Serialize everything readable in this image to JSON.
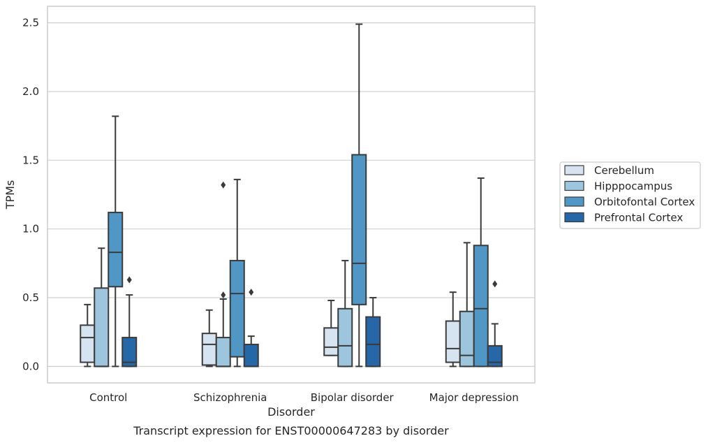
{
  "caption": "Transcript expression for ENST00000647283 by disorder",
  "chart_data": {
    "type": "boxplot",
    "xlabel": "Disorder",
    "ylabel": "TPMs",
    "ylim": [
      -0.12,
      2.62
    ],
    "yticks": [
      0.0,
      0.5,
      1.0,
      1.5,
      2.0,
      2.5
    ],
    "ytick_labels": [
      "0.0",
      "0.5",
      "1.0",
      "1.5",
      "2.0",
      "2.5"
    ],
    "grid": "horizontal",
    "legend_position": "right",
    "categories": [
      "Control",
      "Schizophrenia",
      "Bipolar disorder",
      "Major depression"
    ],
    "series": [
      {
        "name": "Cerebellum",
        "color": "#d6e4f2",
        "boxes": [
          {
            "whislo": 0.0,
            "q1": 0.03,
            "med": 0.21,
            "q3": 0.3,
            "whishi": 0.45,
            "fliers": []
          },
          {
            "whislo": 0.0,
            "q1": 0.01,
            "med": 0.16,
            "q3": 0.24,
            "whishi": 0.41,
            "fliers": []
          },
          {
            "whislo": 0.08,
            "q1": 0.08,
            "med": 0.14,
            "q3": 0.28,
            "whishi": 0.48,
            "fliers": []
          },
          {
            "whislo": 0.0,
            "q1": 0.03,
            "med": 0.13,
            "q3": 0.33,
            "whishi": 0.54,
            "fliers": []
          }
        ]
      },
      {
        "name": "Hipppocampus",
        "color": "#9dc6de",
        "boxes": [
          {
            "whislo": 0.0,
            "q1": 0.0,
            "med": 0.0,
            "q3": 0.57,
            "whishi": 0.86,
            "fliers": []
          },
          {
            "whislo": 0.0,
            "q1": 0.0,
            "med": 0.0,
            "q3": 0.21,
            "whishi": 0.49,
            "fliers": [
              0.52,
              1.32
            ]
          },
          {
            "whislo": 0.0,
            "q1": 0.0,
            "med": 0.15,
            "q3": 0.42,
            "whishi": 0.77,
            "fliers": []
          },
          {
            "whislo": 0.0,
            "q1": 0.0,
            "med": 0.08,
            "q3": 0.4,
            "whishi": 0.9,
            "fliers": []
          }
        ]
      },
      {
        "name": "Orbitofontal Cortex",
        "color": "#5097c6",
        "boxes": [
          {
            "whislo": 0.0,
            "q1": 0.58,
            "med": 0.83,
            "q3": 1.12,
            "whishi": 1.82,
            "fliers": []
          },
          {
            "whislo": 0.0,
            "q1": 0.07,
            "med": 0.53,
            "q3": 0.77,
            "whishi": 1.36,
            "fliers": []
          },
          {
            "whislo": 0.0,
            "q1": 0.45,
            "med": 0.75,
            "q3": 1.54,
            "whishi": 2.49,
            "fliers": []
          },
          {
            "whislo": 0.0,
            "q1": 0.0,
            "med": 0.42,
            "q3": 0.88,
            "whishi": 1.37,
            "fliers": []
          }
        ]
      },
      {
        "name": "Prefrontal Cortex",
        "color": "#2667a7",
        "boxes": [
          {
            "whislo": 0.0,
            "q1": 0.0,
            "med": 0.03,
            "q3": 0.21,
            "whishi": 0.52,
            "fliers": [
              0.63
            ]
          },
          {
            "whislo": 0.0,
            "q1": 0.0,
            "med": 0.0,
            "q3": 0.16,
            "whishi": 0.22,
            "fliers": [
              0.54
            ]
          },
          {
            "whislo": 0.0,
            "q1": 0.0,
            "med": 0.16,
            "q3": 0.36,
            "whishi": 0.5,
            "fliers": []
          },
          {
            "whislo": 0.0,
            "q1": 0.0,
            "med": 0.03,
            "q3": 0.15,
            "whishi": 0.31,
            "fliers": [
              0.6
            ]
          }
        ]
      }
    ]
  }
}
